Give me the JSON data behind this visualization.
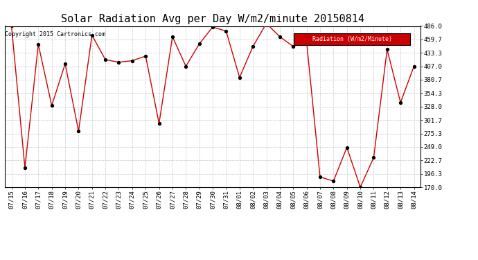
{
  "title": "Solar Radiation Avg per Day W/m2/minute 20150814",
  "copyright_text": "Copyright 2015 Cartronics.com",
  "legend_text": "Radiation (W/m2/Minute)",
  "dates": [
    "07/15",
    "07/16",
    "07/17",
    "07/18",
    "07/19",
    "07/20",
    "07/21",
    "07/22",
    "07/23",
    "07/24",
    "07/25",
    "07/26",
    "07/27",
    "07/28",
    "07/29",
    "07/30",
    "07/31",
    "08/01",
    "08/02",
    "08/03",
    "08/04",
    "08/05",
    "08/06",
    "08/07",
    "08/08",
    "08/09",
    "08/10",
    "08/11",
    "08/12",
    "08/13",
    "08/14"
  ],
  "values": [
    486.0,
    208.0,
    450.0,
    330.0,
    412.0,
    280.0,
    468.0,
    420.0,
    415.0,
    418.0,
    427.0,
    295.0,
    465.0,
    407.0,
    451.0,
    484.0,
    476.0,
    385.0,
    446.0,
    491.0,
    465.0,
    446.0,
    455.0,
    190.0,
    182.0,
    248.0,
    170.0,
    228.0,
    440.0,
    336.0,
    407.0
  ],
  "y_ticks": [
    170.0,
    196.3,
    222.7,
    249.0,
    275.3,
    301.7,
    328.0,
    354.3,
    380.7,
    407.0,
    433.3,
    459.7,
    486.0
  ],
  "ylim": [
    170.0,
    486.0
  ],
  "line_color": "#cc0000",
  "marker_color": "#000000",
  "background_color": "#ffffff",
  "plot_bg_color": "#ffffff",
  "grid_color": "#bbbbbb",
  "title_fontsize": 11,
  "tick_fontsize": 6.5,
  "legend_bg_color": "#cc0000",
  "legend_text_color": "#ffffff",
  "legend_fontsize": 6.0
}
